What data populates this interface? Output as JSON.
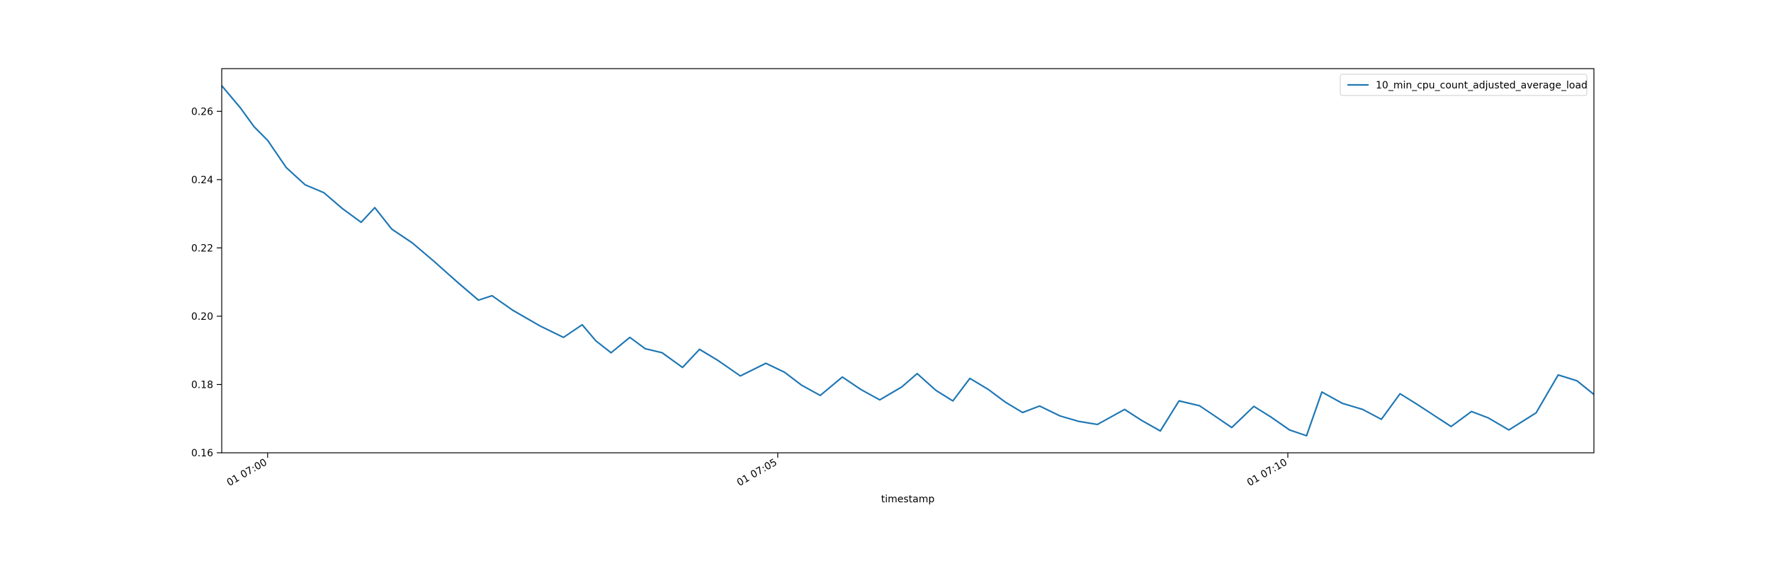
{
  "chart_data": {
    "type": "line",
    "title": "",
    "xlabel": "timestamp",
    "ylabel": "",
    "ylim": [
      0.16,
      0.2725
    ],
    "xlim": [
      "01 06:59:33",
      "01 07:13:00"
    ],
    "x_ticks": [
      "01 07:00",
      "01 07:05",
      "01 07:10"
    ],
    "y_ticks": [
      "0.16",
      "0.18",
      "0.20",
      "0.22",
      "0.24",
      "0.26"
    ],
    "grid": false,
    "legend": "upper right",
    "colors": {
      "line": "#1f77b4",
      "axes": "#000000",
      "background": "#ffffff"
    },
    "series": [
      {
        "name": "10_min_cpu_count_adjusted_average_load",
        "x": [
          "01 06:59:33",
          "01 06:59:44",
          "01 06:59:52",
          "01 07:00:00",
          "01 07:00:11",
          "01 07:00:22",
          "01 07:00:33",
          "01 07:00:44",
          "01 07:00:55",
          "01 07:01:03",
          "01 07:01:13",
          "01 07:01:25",
          "01 07:01:38",
          "01 07:01:52",
          "01 07:02:04",
          "01 07:02:12",
          "01 07:02:24",
          "01 07:02:40",
          "01 07:02:54",
          "01 07:03:05",
          "01 07:03:13",
          "01 07:03:22",
          "01 07:03:33",
          "01 07:03:42",
          "01 07:03:52",
          "01 07:04:04",
          "01 07:04:14",
          "01 07:04:25",
          "01 07:04:38",
          "01 07:04:53",
          "01 07:05:04",
          "01 07:05:14",
          "01 07:05:25",
          "01 07:05:38",
          "01 07:05:49",
          "01 07:06:00",
          "01 07:06:13",
          "01 07:06:22",
          "01 07:06:33",
          "01 07:06:43",
          "01 07:06:53",
          "01 07:07:04",
          "01 07:07:14",
          "01 07:07:24",
          "01 07:07:34",
          "01 07:07:46",
          "01 07:07:57",
          "01 07:08:08",
          "01 07:08:24",
          "01 07:08:34",
          "01 07:08:45",
          "01 07:08:56",
          "01 07:09:08",
          "01 07:09:17",
          "01 07:09:27",
          "01 07:09:40",
          "01 07:09:50",
          "01 07:10:01",
          "01 07:10:11",
          "01 07:10:20",
          "01 07:10:32",
          "01 07:10:44",
          "01 07:10:55",
          "01 07:11:06",
          "01 07:11:16",
          "01 07:11:24",
          "01 07:11:36",
          "01 07:11:48",
          "01 07:11:58",
          "01 07:12:10",
          "01 07:12:26",
          "01 07:12:39",
          "01 07:12:50",
          "01 07:13:00"
        ],
        "values": [
          0.2675,
          0.261,
          0.2555,
          0.2515,
          0.2435,
          0.2385,
          0.2362,
          0.2315,
          0.2275,
          0.2318,
          0.2255,
          0.2215,
          0.216,
          0.2098,
          0.2047,
          0.206,
          0.2018,
          0.1972,
          0.1938,
          0.1975,
          0.1928,
          0.1893,
          0.1938,
          0.1905,
          0.1893,
          0.185,
          0.1903,
          0.187,
          0.1825,
          0.1862,
          0.1836,
          0.1798,
          0.1768,
          0.1822,
          0.1785,
          0.1755,
          0.1793,
          0.1832,
          0.1783,
          0.1752,
          0.1818,
          0.1785,
          0.1748,
          0.1718,
          0.1737,
          0.1708,
          0.1692,
          0.1683,
          0.1727,
          0.1695,
          0.1664,
          0.1752,
          0.1738,
          0.1708,
          0.1674,
          0.1736,
          0.1705,
          0.1667,
          0.165,
          0.1778,
          0.1745,
          0.1727,
          0.1698,
          0.1773,
          0.1742,
          0.1716,
          0.1677,
          0.1721,
          0.1702,
          0.1667,
          0.1717,
          0.1828,
          0.1811,
          0.1771
        ]
      }
    ]
  }
}
